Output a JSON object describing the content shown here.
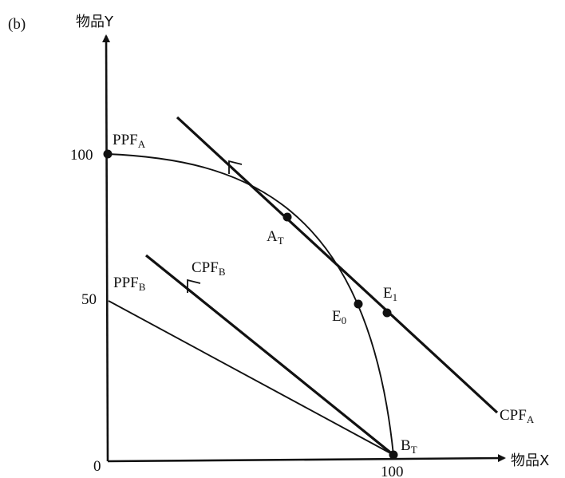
{
  "panel_label": "(b)",
  "axes": {
    "y_label": "物品Y",
    "x_label": "物品X",
    "origin": "0",
    "y_ticks": [
      "100",
      "50"
    ],
    "x_ticks": [
      "100"
    ]
  },
  "curves": {
    "ppf_a": {
      "main": "PPF",
      "sub": "A"
    },
    "ppf_b": {
      "main": "PPF",
      "sub": "B"
    },
    "cpf_a": {
      "main": "CPF",
      "sub": "A"
    },
    "cpf_b": {
      "main": "CPF",
      "sub": "B"
    }
  },
  "points": {
    "a_t": {
      "main": "A",
      "sub": "T"
    },
    "b_t": {
      "main": "B",
      "sub": "T"
    },
    "e_0": {
      "main": "E",
      "sub": "0"
    },
    "e_1": {
      "main": "E",
      "sub": "1"
    }
  },
  "colors": {
    "ink": "#111111",
    "background": "#ffffff"
  }
}
